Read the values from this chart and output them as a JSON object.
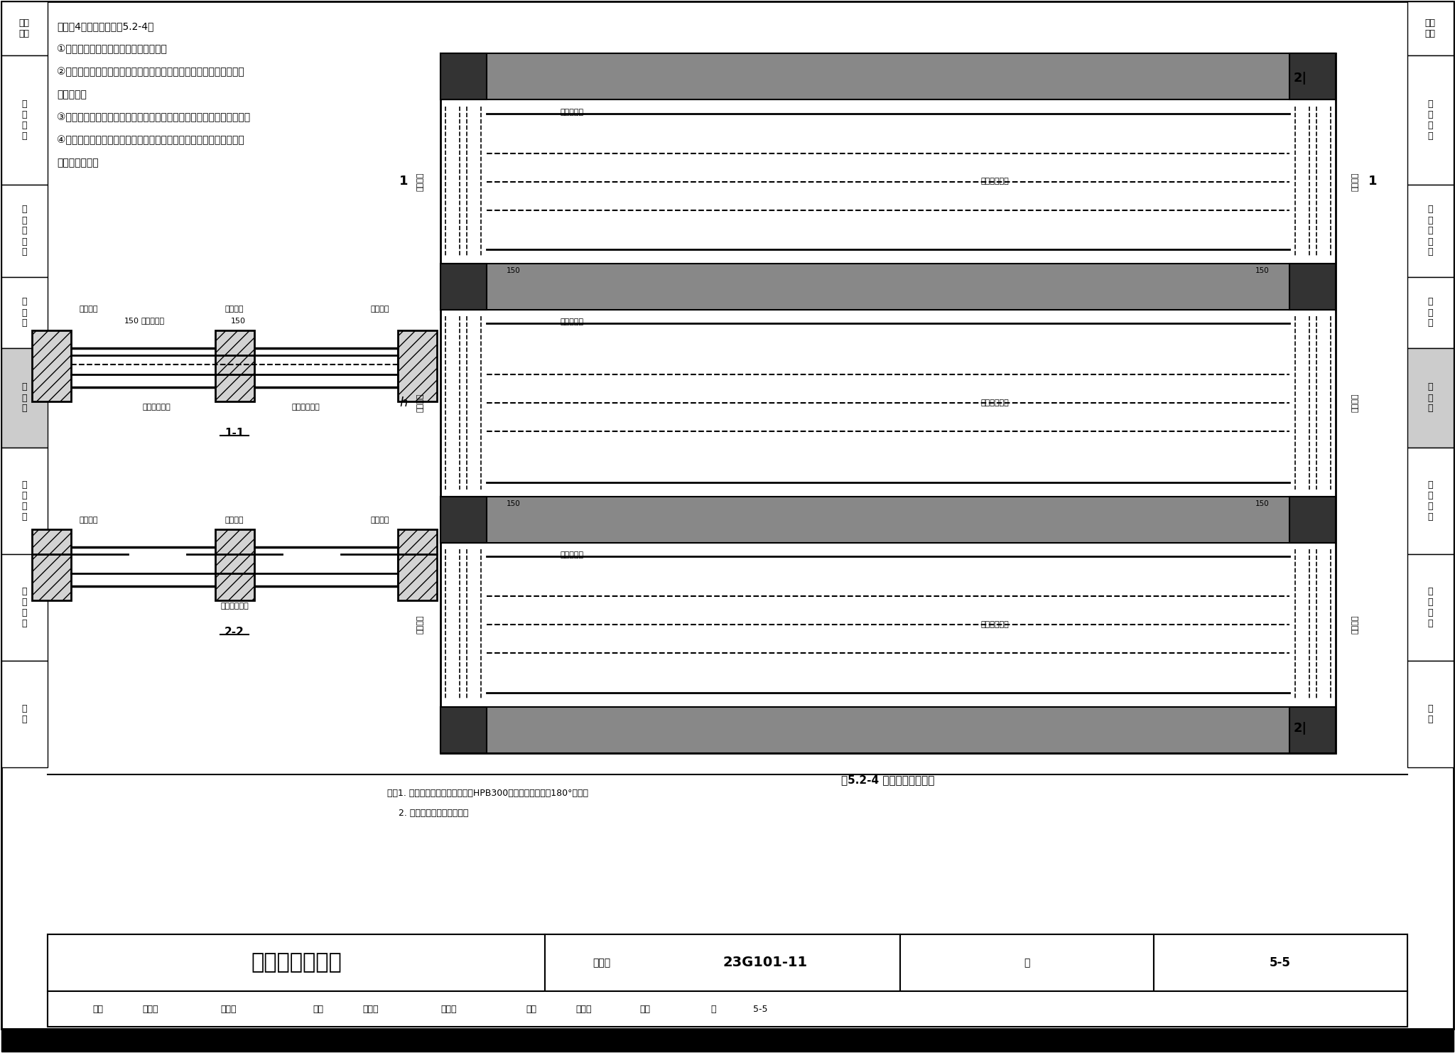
{
  "title": "单向板配筋构造",
  "atlas_number": "23G101-11",
  "page": "5-5",
  "figure_caption": "图5.2-4 单向板配筋平面图",
  "bg_color": "#FFFFFF",
  "border_color": "#000000",
  "sidebar_y_bounds": [
    2,
    78,
    260,
    390,
    490,
    630,
    780,
    930,
    1080
  ],
  "sidebar_labels": [
    "一般\n构造",
    "柱\n和\n节\n点",
    "剪\n力\n墙\n构\n造",
    "梁\n构\n造",
    "板\n构\n造",
    "基\n础\n构\n造",
    "楼\n梯\n构\n造",
    "附\n录"
  ],
  "sidebar_highlight_idx": 4,
  "text_lines": [
    "【示例4】单向板，见图5.2-4。",
    "①单向板下部短向配置板下部受力钢筋。",
    "②单向板中间支座以及按嵌固设计的端支座，应在板顶面另配置支座负",
    "弯矩钢筋。",
    "③按简支计算的端支座、单向板长方向支座，应配置支座板面构造钢筋。",
    "④单向板长向板底、支座负弯矩钢筋或板面构造钢筋的垂直方向，还应",
    "布置分布钢筋。"
  ],
  "notes_lines": [
    "注：1. 当板下部纵向受力钢筋采用HPB300级时，其末端应做180°弯钩。",
    "    2. 图中未表达温度收缩筋。"
  ],
  "footer_title": "单向板配筋构造",
  "footer_atlas_label": "图集号",
  "footer_atlas_num": "23G101-11",
  "footer_page_label": "页",
  "footer_page_num": "5-5",
  "review_items": [
    [
      "审核",
      130
    ],
    [
      "高志强",
      200
    ],
    [
      "富士淮",
      310
    ],
    [
      "校对",
      440
    ],
    [
      "李增银",
      510
    ],
    [
      "本板板",
      620
    ],
    [
      "设计",
      740
    ],
    [
      "肖军器",
      810
    ],
    [
      "朝点",
      900
    ],
    [
      "页",
      1000
    ],
    [
      "5-5",
      1060
    ]
  ]
}
